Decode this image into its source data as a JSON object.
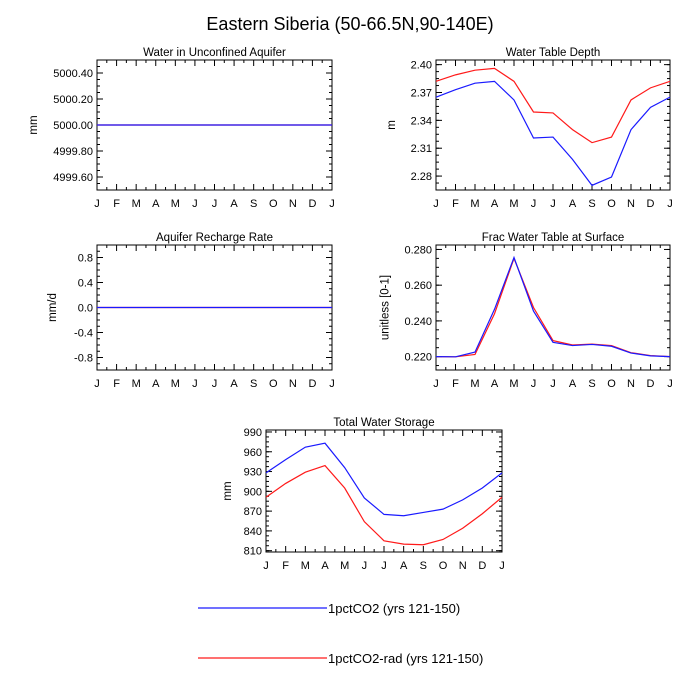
{
  "figure": {
    "title": "Eastern Siberia (50-66.5N,90-140E)"
  },
  "colors": {
    "blue": "#1a1aff",
    "red": "#ff1a1a",
    "axis": "#000000"
  },
  "legend": {
    "items": [
      {
        "label": "1pctCO2 (yrs 121-150)",
        "color": "#1a1aff"
      },
      {
        "label": "1pctCO2-rad (yrs 121-150)",
        "color": "#ff1a1a"
      }
    ]
  },
  "chart_data": [
    {
      "type": "line",
      "title": "Water in Unconfined Aquifer",
      "ylabel": "mm",
      "xlabel": "",
      "x": [
        "J",
        "F",
        "M",
        "A",
        "M",
        "J",
        "J",
        "A",
        "S",
        "O",
        "N",
        "D",
        "J"
      ],
      "ylim": [
        4999.5,
        5000.5
      ],
      "yticks": [
        4999.6,
        4999.8,
        5000.0,
        5000.2,
        5000.4
      ],
      "ytick_labels": [
        "4999.60",
        "4999.80",
        "5000.00",
        "5000.20",
        "5000.40"
      ],
      "series": [
        {
          "name": "1pctCO2 (yrs 121-150)",
          "color": "#1a1aff",
          "values": [
            5000,
            5000,
            5000,
            5000,
            5000,
            5000,
            5000,
            5000,
            5000,
            5000,
            5000,
            5000,
            5000
          ]
        },
        {
          "name": "1pctCO2-rad (yrs 121-150)",
          "color": "#ff1a1a",
          "values": [
            5000,
            5000,
            5000,
            5000,
            5000,
            5000,
            5000,
            5000,
            5000,
            5000,
            5000,
            5000,
            5000
          ]
        }
      ]
    },
    {
      "type": "line",
      "title": "Water Table Depth",
      "ylabel": "m",
      "xlabel": "",
      "x": [
        "J",
        "F",
        "M",
        "A",
        "M",
        "J",
        "J",
        "A",
        "S",
        "O",
        "N",
        "D",
        "J"
      ],
      "ylim": [
        2.265,
        2.405
      ],
      "yticks": [
        2.28,
        2.31,
        2.34,
        2.37,
        2.4
      ],
      "ytick_labels": [
        "2.28",
        "2.31",
        "2.34",
        "2.37",
        "2.40"
      ],
      "series": [
        {
          "name": "1pctCO2 (yrs 121-150)",
          "color": "#1a1aff",
          "values": [
            2.365,
            2.373,
            2.38,
            2.382,
            2.362,
            2.321,
            2.322,
            2.298,
            2.27,
            2.279,
            2.33,
            2.354,
            2.365
          ]
        },
        {
          "name": "1pctCO2-rad (yrs 121-150)",
          "color": "#ff1a1a",
          "values": [
            2.382,
            2.389,
            2.394,
            2.396,
            2.382,
            2.349,
            2.348,
            2.33,
            2.316,
            2.322,
            2.362,
            2.375,
            2.382
          ]
        }
      ]
    },
    {
      "type": "line",
      "title": "Aquifer Recharge Rate",
      "ylabel": "mm/d",
      "xlabel": "",
      "x": [
        "J",
        "F",
        "M",
        "A",
        "M",
        "J",
        "J",
        "A",
        "S",
        "O",
        "N",
        "D",
        "J"
      ],
      "ylim": [
        -1.0,
        1.0
      ],
      "yticks": [
        -0.8,
        -0.4,
        0.0,
        0.4,
        0.8
      ],
      "ytick_labels": [
        "-0.8",
        "-0.4",
        "0.0",
        "0.4",
        "0.8"
      ],
      "series": [
        {
          "name": "1pctCO2 (yrs 121-150)",
          "color": "#1a1aff",
          "values": [
            0,
            0,
            0,
            0,
            0,
            0,
            0,
            0,
            0,
            0,
            0,
            0,
            0
          ]
        },
        {
          "name": "1pctCO2-rad (yrs 121-150)",
          "color": "#ff1a1a",
          "values": [
            0,
            0,
            0,
            0,
            0,
            0,
            0,
            0,
            0,
            0,
            0,
            0,
            0
          ]
        }
      ]
    },
    {
      "type": "line",
      "title": "Frac Water Table at Surface",
      "ylabel": "unitless [0-1]",
      "xlabel": "",
      "x": [
        "J",
        "F",
        "M",
        "A",
        "M",
        "J",
        "J",
        "A",
        "S",
        "O",
        "N",
        "D",
        "J"
      ],
      "ylim": [
        0.2125,
        0.2825
      ],
      "yticks": [
        0.22,
        0.24,
        0.26,
        0.28
      ],
      "ytick_labels": [
        "0.220",
        "0.240",
        "0.260",
        "0.280"
      ],
      "series": [
        {
          "name": "1pctCO2 (yrs 121-150)",
          "color": "#1a1aff",
          "values": [
            0.22,
            0.2199,
            0.2225,
            0.2465,
            0.2755,
            0.2455,
            0.228,
            0.2262,
            0.2268,
            0.2258,
            0.222,
            0.2204,
            0.22
          ]
        },
        {
          "name": "1pctCO2-rad (yrs 121-150)",
          "color": "#ff1a1a",
          "values": [
            0.22,
            0.2199,
            0.2212,
            0.244,
            0.275,
            0.2475,
            0.229,
            0.2265,
            0.227,
            0.2262,
            0.2222,
            0.2206,
            0.22
          ]
        }
      ]
    },
    {
      "type": "line",
      "title": "Total Water Storage",
      "ylabel": "mm",
      "xlabel": "",
      "x": [
        "J",
        "F",
        "M",
        "A",
        "M",
        "J",
        "J",
        "A",
        "S",
        "O",
        "N",
        "D",
        "J"
      ],
      "ylim": [
        808,
        993
      ],
      "yticks": [
        810,
        840,
        870,
        900,
        930,
        960,
        990
      ],
      "ytick_labels": [
        "810",
        "840",
        "870",
        "900",
        "930",
        "960",
        "990"
      ],
      "series": [
        {
          "name": "1pctCO2 (yrs 121-150)",
          "color": "#1a1aff",
          "values": [
            928,
            948,
            967,
            973,
            936,
            890,
            865,
            863,
            868,
            873,
            887,
            905,
            928
          ]
        },
        {
          "name": "1pctCO2-rad (yrs 121-150)",
          "color": "#ff1a1a",
          "values": [
            891,
            912,
            929,
            939,
            905,
            854,
            825,
            820,
            819,
            827,
            844,
            866,
            891
          ]
        }
      ]
    }
  ]
}
